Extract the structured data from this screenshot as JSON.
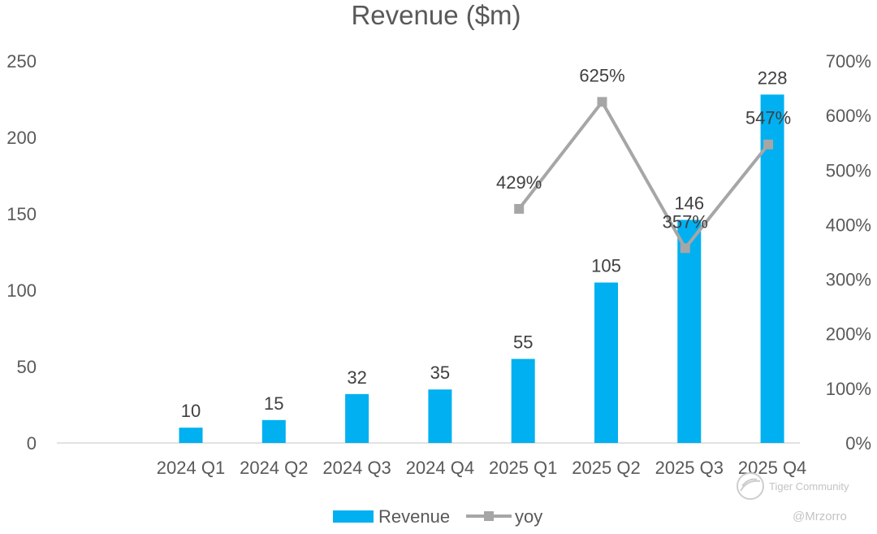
{
  "chart_data": {
    "type": "bar",
    "title": "Revenue ($m)",
    "categories": [
      "2024 Q1",
      "2024 Q2",
      "2024 Q3",
      "2024 Q4",
      "2025 Q1",
      "2025 Q2",
      "2025 Q3",
      "2025 Q4"
    ],
    "series": [
      {
        "name": "Revenue",
        "type": "bar",
        "axis": "left",
        "color": "#00b0f0",
        "values": [
          10,
          15,
          32,
          35,
          55,
          105,
          146,
          228
        ],
        "labels": [
          "10",
          "15",
          "32",
          "35",
          "55",
          "105",
          "146",
          "228"
        ]
      },
      {
        "name": "yoy",
        "type": "line",
        "axis": "right",
        "color": "#a6a6a6",
        "values": [
          null,
          null,
          null,
          null,
          429,
          625,
          357,
          547
        ],
        "labels": [
          "",
          "",
          "",
          "",
          "429%",
          "625%",
          "357%",
          "547%"
        ]
      }
    ],
    "y_left": {
      "min": 0,
      "max": 250,
      "ticks": [
        0,
        50,
        100,
        150,
        200,
        250
      ],
      "tick_labels": [
        "0",
        "50",
        "100",
        "150",
        "200",
        "250"
      ]
    },
    "y_right": {
      "min": 0,
      "max": 700,
      "ticks": [
        0,
        100,
        200,
        300,
        400,
        500,
        600,
        700
      ],
      "tick_labels": [
        "0%",
        "100%",
        "200%",
        "300%",
        "400%",
        "500%",
        "600%",
        "700%"
      ]
    },
    "grid": false,
    "legend_position": "bottom-center"
  },
  "watermark": {
    "brand": "Tiger Community",
    "handle": "@Mrzorro"
  }
}
